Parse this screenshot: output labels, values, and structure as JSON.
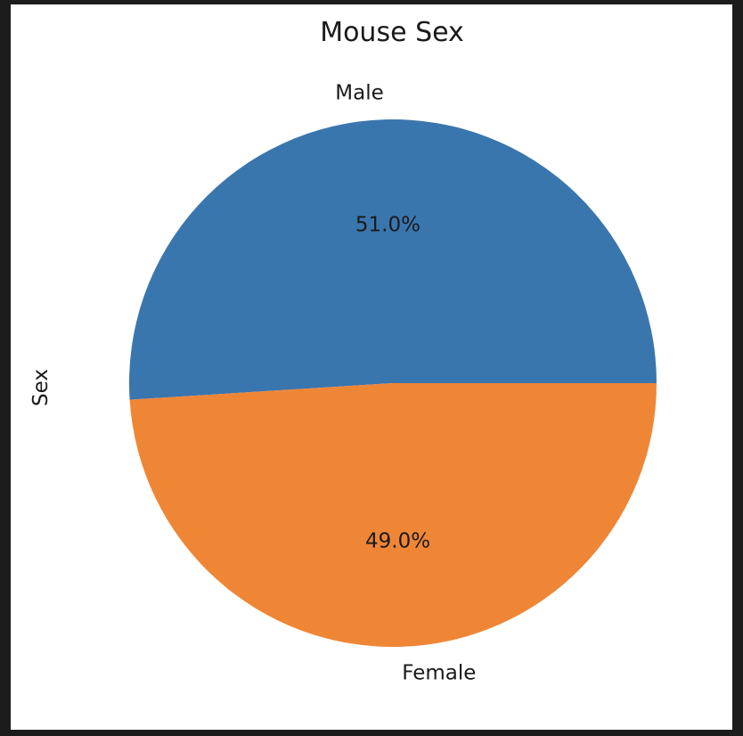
{
  "chart_data": {
    "type": "pie",
    "title": "Mouse Sex",
    "ylabel": "Sex",
    "slices": [
      {
        "label": "Male",
        "value": 51.0,
        "pct_label": "51.0%",
        "color": "#3a76ae"
      },
      {
        "label": "Female",
        "value": 49.0,
        "pct_label": "49.0%",
        "color": "#ef8636"
      }
    ]
  }
}
